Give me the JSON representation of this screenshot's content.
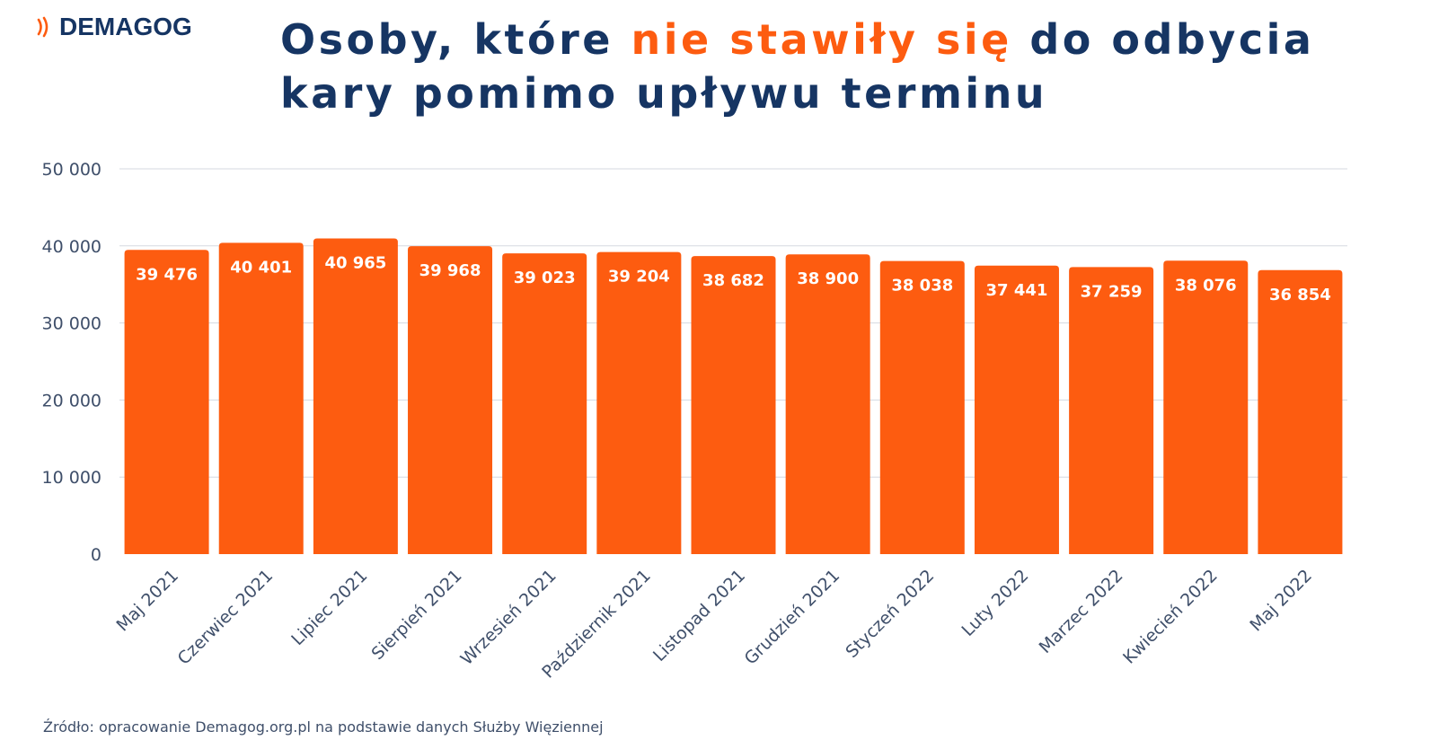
{
  "colors": {
    "navy": "#163563",
    "orange": "#fd5c10",
    "grid": "#d5d9e0",
    "axis_text": "#3f4f6a",
    "label_text": "#ffffff"
  },
  "logo": {
    "text": "DEMAGOG",
    "icon": "signal-waves-icon"
  },
  "title": {
    "part1": "Osoby, które ",
    "highlight": "nie stawiły się",
    "part2": " do odbycia",
    "line2": "kary pomimo upływu terminu"
  },
  "source": "Źródło: opracowanie Demagog.org.pl na podstawie danych Służby Więziennej",
  "chart_data": {
    "type": "bar",
    "categories": [
      "Maj 2021",
      "Czerwiec 2021",
      "Lipiec 2021",
      "Sierpień 2021",
      "Wrzesień 2021",
      "Październik 2021",
      "Listopad 2021",
      "Grudzień 2021",
      "Styczeń 2022",
      "Luty 2022",
      "Marzec 2022",
      "Kwiecień 2022",
      "Maj 2022"
    ],
    "values": [
      39476,
      40401,
      40965,
      39968,
      39023,
      39204,
      38682,
      38900,
      38038,
      37441,
      37259,
      38076,
      36854
    ],
    "value_labels": [
      "39 476",
      "40 401",
      "40 965",
      "39 968",
      "39 023",
      "39 204",
      "38 682",
      "38 900",
      "38 038",
      "37 441",
      "37 259",
      "38 076",
      "36 854"
    ],
    "yticks": [
      0,
      10000,
      20000,
      30000,
      40000,
      50000
    ],
    "ytick_labels": [
      "0",
      "10 000",
      "20 000",
      "30 000",
      "40 000",
      "50 000"
    ],
    "ylim": [
      0,
      50000
    ],
    "grid": true,
    "xlabel": "",
    "ylabel": ""
  }
}
